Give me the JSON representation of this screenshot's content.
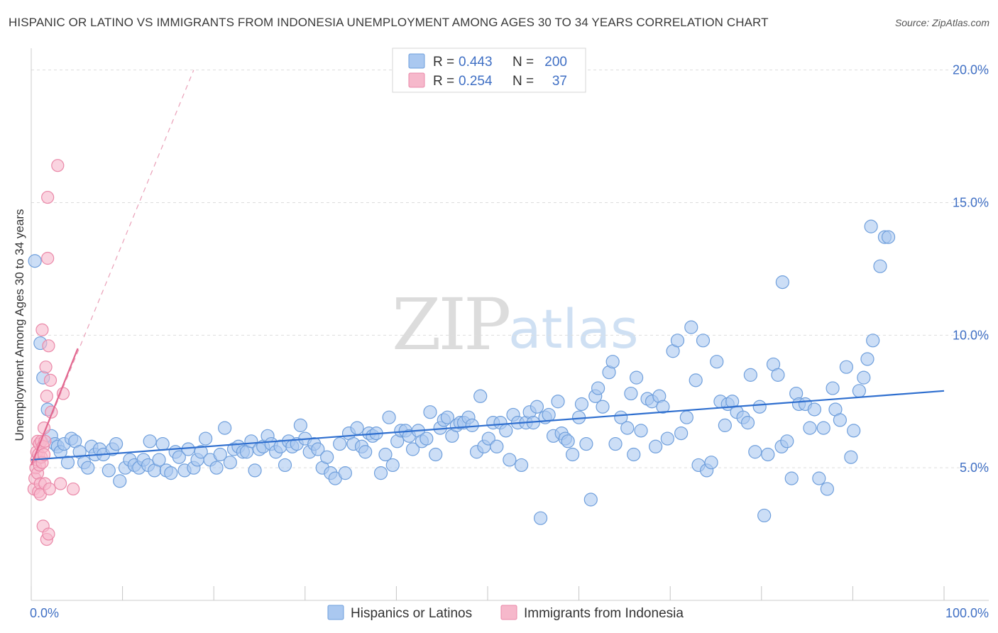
{
  "title": "HISPANIC OR LATINO VS IMMIGRANTS FROM INDONESIA UNEMPLOYMENT AMONG AGES 30 TO 34 YEARS CORRELATION CHART",
  "source": "Source: ZipAtlas.com",
  "watermark": {
    "zip": "ZIP",
    "atlas": "atlas"
  },
  "colors": {
    "blue": "#3f6fc4",
    "blue_fill": "#aac8f0",
    "blue_stroke": "#6f9fdc",
    "blue_line": "#2f6fcf",
    "pink_fill": "#f6b8cb",
    "pink_stroke": "#ea88a8",
    "pink_line": "#e2678f",
    "grid": "#dddddd"
  },
  "legend": {
    "row1": {
      "r_label": "R =",
      "r_value": "0.443",
      "n_label": "N =",
      "n_value": "200"
    },
    "row2": {
      "r_label": "R =",
      "r_value": "0.254",
      "n_label": "N =",
      "n_value": "37"
    }
  },
  "chart_data": {
    "type": "scatter",
    "title": "HISPANIC OR LATINO VS IMMIGRANTS FROM INDONESIA UNEMPLOYMENT AMONG AGES 30 TO 34 YEARS CORRELATION CHART",
    "xlabel": "",
    "ylabel": "Unemployment Among Ages 30 to 34 years",
    "xlim": [
      0,
      100
    ],
    "ylim": [
      0,
      20.5
    ],
    "x_tick_labels": [
      "0.0%",
      "100.0%"
    ],
    "y_ticks": [
      5,
      10,
      15,
      20
    ],
    "y_tick_labels": [
      "5.0%",
      "10.0%",
      "15.0%",
      "20.0%"
    ],
    "grid": true,
    "legend_position": "top-center",
    "series": [
      {
        "name": "Hispanics or Latinos",
        "r": 0.443,
        "n": 200,
        "trend": {
          "x": [
            0,
            100
          ],
          "y": [
            5.3,
            7.9
          ]
        },
        "points": [
          [
            0.4,
            12.8
          ],
          [
            1.0,
            9.7
          ],
          [
            1.3,
            8.4
          ],
          [
            1.8,
            7.2
          ],
          [
            2.2,
            6.2
          ],
          [
            2.6,
            5.9
          ],
          [
            2.9,
            5.8
          ],
          [
            3.2,
            5.6
          ],
          [
            3.6,
            5.9
          ],
          [
            4.0,
            5.2
          ],
          [
            4.4,
            6.1
          ],
          [
            4.8,
            6.0
          ],
          [
            5.3,
            5.6
          ],
          [
            5.8,
            5.2
          ],
          [
            6.2,
            5.0
          ],
          [
            6.6,
            5.8
          ],
          [
            7.0,
            5.5
          ],
          [
            7.5,
            5.7
          ],
          [
            7.9,
            5.5
          ],
          [
            8.5,
            4.9
          ],
          [
            8.9,
            5.7
          ],
          [
            9.3,
            5.9
          ],
          [
            9.7,
            4.5
          ],
          [
            10.3,
            5.0
          ],
          [
            10.8,
            5.3
          ],
          [
            11.3,
            5.1
          ],
          [
            11.8,
            5.0
          ],
          [
            12.3,
            5.3
          ],
          [
            12.8,
            5.1
          ],
          [
            13.0,
            6.0
          ],
          [
            13.5,
            4.9
          ],
          [
            14.0,
            5.3
          ],
          [
            14.4,
            5.9
          ],
          [
            14.8,
            4.9
          ],
          [
            15.3,
            4.8
          ],
          [
            15.8,
            5.6
          ],
          [
            16.2,
            5.4
          ],
          [
            16.8,
            4.9
          ],
          [
            17.2,
            5.7
          ],
          [
            17.8,
            5.0
          ],
          [
            18.2,
            5.3
          ],
          [
            18.6,
            5.6
          ],
          [
            19.1,
            6.1
          ],
          [
            19.6,
            5.3
          ],
          [
            20.3,
            5.0
          ],
          [
            20.7,
            5.5
          ],
          [
            21.2,
            6.5
          ],
          [
            21.8,
            5.2
          ],
          [
            22.2,
            5.7
          ],
          [
            22.7,
            5.8
          ],
          [
            23.2,
            5.6
          ],
          [
            23.6,
            5.6
          ],
          [
            24.1,
            6.0
          ],
          [
            24.5,
            4.9
          ],
          [
            25.0,
            5.7
          ],
          [
            25.4,
            5.8
          ],
          [
            25.9,
            6.2
          ],
          [
            26.3,
            5.9
          ],
          [
            26.8,
            5.6
          ],
          [
            27.3,
            5.8
          ],
          [
            27.8,
            5.1
          ],
          [
            28.2,
            6.0
          ],
          [
            28.6,
            5.8
          ],
          [
            29.1,
            5.9
          ],
          [
            29.5,
            6.6
          ],
          [
            30.0,
            6.1
          ],
          [
            30.5,
            5.6
          ],
          [
            31.0,
            5.9
          ],
          [
            31.4,
            5.7
          ],
          [
            31.9,
            5.0
          ],
          [
            32.4,
            5.4
          ],
          [
            32.8,
            4.8
          ],
          [
            33.3,
            4.6
          ],
          [
            33.8,
            5.9
          ],
          [
            34.4,
            4.8
          ],
          [
            34.8,
            6.3
          ],
          [
            35.3,
            5.9
          ],
          [
            35.7,
            6.5
          ],
          [
            36.2,
            5.8
          ],
          [
            36.6,
            5.6
          ],
          [
            37.0,
            6.3
          ],
          [
            37.4,
            6.2
          ],
          [
            37.8,
            6.3
          ],
          [
            38.3,
            4.8
          ],
          [
            38.8,
            5.5
          ],
          [
            39.2,
            6.9
          ],
          [
            39.6,
            5.1
          ],
          [
            40.1,
            6.0
          ],
          [
            40.5,
            6.4
          ],
          [
            41.0,
            6.4
          ],
          [
            41.4,
            6.2
          ],
          [
            41.8,
            5.7
          ],
          [
            42.4,
            6.4
          ],
          [
            42.8,
            6.0
          ],
          [
            43.3,
            6.1
          ],
          [
            43.7,
            7.1
          ],
          [
            44.3,
            5.5
          ],
          [
            44.8,
            6.5
          ],
          [
            45.2,
            6.8
          ],
          [
            45.6,
            6.9
          ],
          [
            46.1,
            6.2
          ],
          [
            46.6,
            6.6
          ],
          [
            47.0,
            6.7
          ],
          [
            47.4,
            6.7
          ],
          [
            47.9,
            6.9
          ],
          [
            48.3,
            6.6
          ],
          [
            48.8,
            5.6
          ],
          [
            49.2,
            7.7
          ],
          [
            49.6,
            5.8
          ],
          [
            50.1,
            6.1
          ],
          [
            50.6,
            6.7
          ],
          [
            51.0,
            5.8
          ],
          [
            51.4,
            6.7
          ],
          [
            52.0,
            6.4
          ],
          [
            52.4,
            5.3
          ],
          [
            52.8,
            7.0
          ],
          [
            53.3,
            6.7
          ],
          [
            53.7,
            5.1
          ],
          [
            54.2,
            6.7
          ],
          [
            54.6,
            7.1
          ],
          [
            55.0,
            6.7
          ],
          [
            55.4,
            7.3
          ],
          [
            55.8,
            3.1
          ],
          [
            56.3,
            6.9
          ],
          [
            56.7,
            7.0
          ],
          [
            57.2,
            6.2
          ],
          [
            57.7,
            7.5
          ],
          [
            58.1,
            6.3
          ],
          [
            58.5,
            6.1
          ],
          [
            58.8,
            6.0
          ],
          [
            59.3,
            5.5
          ],
          [
            60.0,
            6.9
          ],
          [
            60.3,
            7.4
          ],
          [
            60.8,
            5.9
          ],
          [
            61.3,
            3.8
          ],
          [
            61.8,
            7.7
          ],
          [
            62.1,
            8.0
          ],
          [
            62.6,
            7.3
          ],
          [
            63.3,
            8.6
          ],
          [
            63.7,
            9.0
          ],
          [
            64.0,
            5.9
          ],
          [
            64.6,
            6.9
          ],
          [
            65.3,
            6.5
          ],
          [
            65.7,
            7.8
          ],
          [
            66.0,
            5.5
          ],
          [
            66.3,
            8.4
          ],
          [
            66.8,
            6.4
          ],
          [
            67.5,
            7.6
          ],
          [
            68.0,
            7.5
          ],
          [
            68.4,
            5.8
          ],
          [
            68.8,
            7.7
          ],
          [
            69.2,
            7.3
          ],
          [
            69.7,
            6.1
          ],
          [
            70.3,
            9.4
          ],
          [
            70.8,
            9.8
          ],
          [
            71.2,
            6.3
          ],
          [
            71.8,
            6.9
          ],
          [
            72.3,
            10.3
          ],
          [
            72.8,
            8.3
          ],
          [
            73.1,
            5.1
          ],
          [
            73.6,
            9.8
          ],
          [
            74.0,
            4.9
          ],
          [
            74.5,
            5.2
          ],
          [
            75.1,
            9.0
          ],
          [
            75.5,
            7.5
          ],
          [
            76.0,
            6.6
          ],
          [
            76.3,
            7.4
          ],
          [
            76.8,
            7.5
          ],
          [
            77.3,
            7.1
          ],
          [
            78.0,
            6.9
          ],
          [
            78.5,
            6.7
          ],
          [
            78.8,
            8.5
          ],
          [
            79.3,
            5.6
          ],
          [
            79.8,
            7.3
          ],
          [
            80.3,
            3.2
          ],
          [
            80.7,
            5.5
          ],
          [
            81.3,
            8.9
          ],
          [
            81.8,
            8.5
          ],
          [
            82.2,
            5.8
          ],
          [
            82.8,
            6.0
          ],
          [
            83.3,
            4.6
          ],
          [
            83.8,
            7.8
          ],
          [
            84.1,
            7.4
          ],
          [
            84.8,
            7.4
          ],
          [
            85.3,
            6.5
          ],
          [
            85.8,
            7.2
          ],
          [
            86.3,
            4.6
          ],
          [
            86.8,
            6.5
          ],
          [
            87.2,
            4.2
          ],
          [
            87.8,
            8.0
          ],
          [
            88.1,
            7.2
          ],
          [
            88.6,
            6.8
          ],
          [
            89.3,
            8.8
          ],
          [
            89.8,
            5.4
          ],
          [
            90.1,
            6.4
          ],
          [
            90.7,
            7.9
          ],
          [
            91.2,
            8.4
          ],
          [
            91.6,
            9.1
          ],
          [
            92.2,
            9.8
          ],
          [
            92.0,
            14.1
          ],
          [
            93.0,
            12.6
          ],
          [
            93.5,
            13.7
          ],
          [
            93.9,
            13.7
          ],
          [
            82.3,
            12.0
          ]
        ]
      },
      {
        "name": "Immigrants from Indonesia",
        "r": 0.254,
        "n": 37,
        "trend": {
          "x": [
            0,
            5.1
          ],
          "y": [
            5.1,
            9.5
          ]
        },
        "trend_dashed": {
          "x": [
            0,
            17.8
          ],
          "y": [
            5.1,
            20.0
          ]
        },
        "points": [
          [
            0.3,
            4.2
          ],
          [
            0.4,
            4.6
          ],
          [
            0.5,
            5.0
          ],
          [
            0.6,
            5.3
          ],
          [
            0.6,
            5.6
          ],
          [
            0.7,
            4.8
          ],
          [
            0.7,
            6.0
          ],
          [
            0.8,
            4.1
          ],
          [
            0.8,
            5.5
          ],
          [
            0.9,
            5.1
          ],
          [
            0.9,
            5.9
          ],
          [
            1.0,
            4.4
          ],
          [
            1.0,
            4.0
          ],
          [
            1.1,
            5.4
          ],
          [
            1.1,
            6.0
          ],
          [
            1.2,
            5.2
          ],
          [
            1.2,
            10.2
          ],
          [
            1.3,
            5.8
          ],
          [
            1.3,
            2.8
          ],
          [
            1.4,
            5.5
          ],
          [
            1.4,
            6.5
          ],
          [
            1.5,
            6.0
          ],
          [
            1.5,
            4.4
          ],
          [
            1.6,
            8.8
          ],
          [
            1.7,
            7.7
          ],
          [
            1.7,
            2.3
          ],
          [
            1.8,
            15.2
          ],
          [
            1.8,
            12.9
          ],
          [
            1.9,
            9.6
          ],
          [
            1.9,
            2.5
          ],
          [
            2.0,
            4.2
          ],
          [
            2.1,
            8.3
          ],
          [
            2.2,
            7.1
          ],
          [
            2.9,
            16.4
          ],
          [
            3.2,
            4.4
          ],
          [
            3.5,
            7.8
          ],
          [
            4.6,
            4.2
          ]
        ]
      }
    ]
  },
  "bottom_legend": {
    "series1": "Hispanics or Latinos",
    "series2": "Immigrants from Indonesia"
  }
}
